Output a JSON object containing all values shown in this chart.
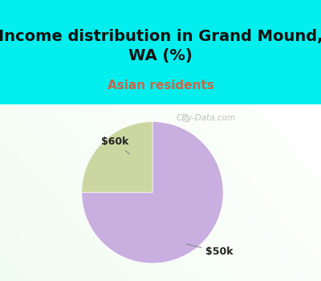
{
  "title": "Income distribution in Grand Mound,\nWA (%)",
  "subtitle": "Asian residents",
  "slices": [
    75,
    25
  ],
  "labels": [
    "$50k",
    "$60k"
  ],
  "colors": [
    "#c9aee0",
    "#ccd6a0"
  ],
  "title_fontsize": 14,
  "subtitle_fontsize": 11,
  "subtitle_color": "#cc6644",
  "title_color": "#111111",
  "bg_top_color": "#00eeee",
  "chart_bg_color": "#e8f5e8",
  "watermark": "City-Data.com",
  "start_angle": 90,
  "label_fontsize": 9,
  "label_color": "#222222"
}
